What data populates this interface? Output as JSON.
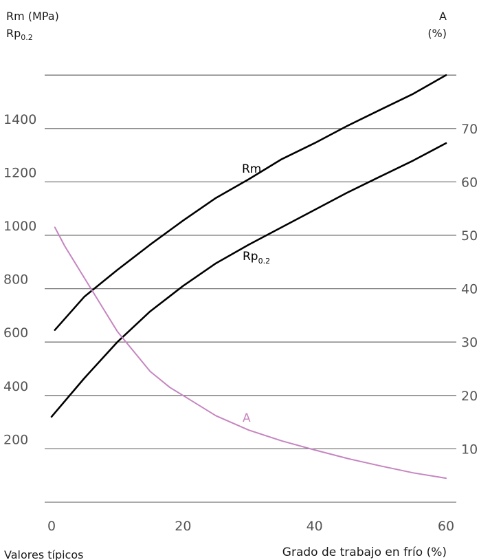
{
  "chart_data": {
    "type": "line",
    "title": "",
    "xlabel": "Grado de trabajo en frío (%)",
    "note": "Valores típicos",
    "x_ticks": [
      0,
      20,
      40,
      60
    ],
    "xlim": [
      0,
      60
    ],
    "y_left": {
      "label_line1": "Rm (MPa)",
      "label_line2_main": "Rp",
      "label_line2_sub": "0.2",
      "ticks": [
        200,
        400,
        600,
        800,
        1000,
        1200,
        1400
      ],
      "ylim": [
        0,
        1600
      ]
    },
    "y_right": {
      "label_line1": "A",
      "label_line2": "(%)",
      "ticks": [
        10,
        20,
        30,
        40,
        50,
        60,
        70
      ],
      "ylim": [
        0,
        80
      ]
    },
    "grid": true,
    "series": [
      {
        "name": "Rm",
        "axis": "left",
        "color": "#000000",
        "x": [
          0.5,
          5,
          10,
          15,
          20,
          25,
          30,
          35,
          40,
          45,
          50,
          55,
          60
        ],
        "y": [
          645,
          770,
          870,
          965,
          1055,
          1140,
          1210,
          1285,
          1345,
          1410,
          1470,
          1530,
          1600
        ]
      },
      {
        "name": "Rp",
        "name_sub": "0.2",
        "axis": "left",
        "color": "#000000",
        "x": [
          0,
          5,
          10,
          15,
          20,
          25,
          30,
          35,
          40,
          45,
          50,
          55,
          60
        ],
        "y": [
          320,
          465,
          600,
          715,
          810,
          895,
          965,
          1030,
          1095,
          1160,
          1220,
          1280,
          1345
        ]
      },
      {
        "name": "A",
        "axis": "right",
        "color": "#c585c0",
        "x": [
          0.5,
          2,
          5,
          8,
          10,
          12,
          15,
          18,
          20,
          25,
          30,
          35,
          40,
          45,
          50,
          55,
          60
        ],
        "y": [
          51.5,
          48,
          42,
          36,
          32,
          29,
          24.5,
          21.5,
          20,
          16.2,
          13.5,
          11.5,
          9.8,
          8.2,
          6.8,
          5.5,
          4.5
        ]
      }
    ]
  }
}
